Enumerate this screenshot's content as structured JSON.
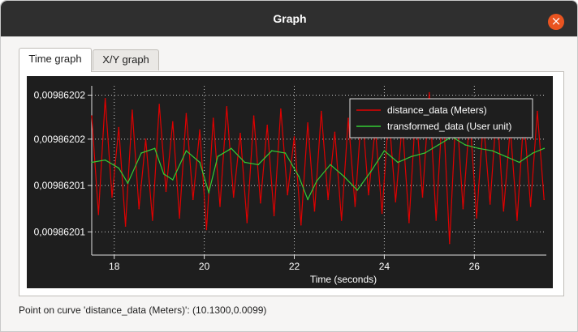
{
  "window": {
    "title": "Graph",
    "close_icon": "close-icon"
  },
  "tabs": [
    {
      "label": "Time graph",
      "active": true
    },
    {
      "label": "X/Y graph",
      "active": false
    }
  ],
  "colors": {
    "background": "#1e1e1e",
    "grid": "#c8c8c8",
    "axis": "#dddddd",
    "series1": "#e00000",
    "series2": "#33cc33"
  },
  "chart_data": {
    "type": "line",
    "title": "",
    "xlabel": "Time (seconds)",
    "ylabel": "",
    "xlim": [
      17.5,
      27.6
    ],
    "ylim": [
      0.009862007,
      0.0098620216
    ],
    "xticks": [
      18,
      20,
      22,
      24,
      26
    ],
    "xtick_labels": [
      "18",
      "20",
      "22",
      "24",
      "26"
    ],
    "yticks": [
      0.009862009,
      0.009862013,
      0.009862017,
      0.0098620208
    ],
    "ytick_labels": [
      "0,00986201",
      "0,00986201",
      "0,00986202",
      "0,00986202"
    ],
    "grid": true,
    "legend_position": "top-right",
    "series": [
      {
        "name": "distance_data (Meters)",
        "color": "#e00000",
        "x": [
          17.5,
          17.65,
          17.8,
          17.95,
          18.1,
          18.25,
          18.4,
          18.55,
          18.7,
          18.85,
          19.0,
          19.15,
          19.3,
          19.45,
          19.6,
          19.75,
          19.9,
          20.05,
          20.2,
          20.35,
          20.5,
          20.65,
          20.8,
          20.95,
          21.1,
          21.25,
          21.4,
          21.55,
          21.7,
          21.85,
          22.0,
          22.15,
          22.3,
          22.45,
          22.6,
          22.75,
          22.9,
          23.05,
          23.2,
          23.35,
          23.5,
          23.65,
          23.8,
          23.95,
          24.1,
          24.25,
          24.4,
          24.55,
          24.7,
          24.85,
          25.0,
          25.15,
          25.3,
          25.45,
          25.6,
          25.75,
          25.9,
          26.05,
          26.2,
          26.35,
          26.5,
          26.65,
          26.8,
          26.95,
          27.1,
          27.25,
          27.4,
          27.55
        ],
        "y": [
          0.009862019,
          0.0098620105,
          0.0098620205,
          0.009862012,
          0.009862018,
          0.0098620095,
          0.0098620195,
          0.009862011,
          0.009862017,
          0.00986201,
          0.00986202,
          0.0098620125,
          0.0098620185,
          0.0098620102,
          0.0098620192,
          0.0098620118,
          0.0098620178,
          0.0098620092,
          0.0098620188,
          0.0098620112,
          0.0098620198,
          0.009862012,
          0.0098620175,
          0.0098620098,
          0.009862019,
          0.0098620115,
          0.0098620182,
          0.0098620104,
          0.0098620196,
          0.0098620122,
          0.0098620172,
          0.0098620096,
          0.0098620184,
          0.0098620108,
          0.0098620194,
          0.0098620118,
          0.0098620176,
          0.00986201,
          0.0098620188,
          0.0098620112,
          0.0098620198,
          0.0098620122,
          0.009862018,
          0.0098620106,
          0.0098620192,
          0.0098620116,
          0.0098620184,
          0.0098620098,
          0.0098620196,
          0.009862012,
          0.009862021,
          0.00986201,
          0.0098620202,
          0.009862008,
          0.00986202,
          0.009862011,
          0.009862019,
          0.0098620102,
          0.0098620186,
          0.0098620114,
          0.0098620198,
          0.0098620108,
          0.009862018,
          0.00986201,
          0.009862019,
          0.0098620112,
          0.0098620194,
          0.0098620118
        ]
      },
      {
        "name": "transformed_data (User unit)",
        "color": "#33cc33",
        "x": [
          17.5,
          17.8,
          18.1,
          18.3,
          18.6,
          18.9,
          19.1,
          19.3,
          19.6,
          19.9,
          20.1,
          20.3,
          20.6,
          20.9,
          21.2,
          21.5,
          21.8,
          22.1,
          22.3,
          22.5,
          22.8,
          23.1,
          23.4,
          23.7,
          24.0,
          24.3,
          24.6,
          24.9,
          25.2,
          25.5,
          25.8,
          26.1,
          26.4,
          26.7,
          27.0,
          27.3,
          27.55
        ],
        "y": [
          0.009862015,
          0.0098620152,
          0.0098620145,
          0.0098620132,
          0.0098620158,
          0.0098620162,
          0.009862014,
          0.0098620135,
          0.009862016,
          0.009862015,
          0.0098620124,
          0.0098620155,
          0.0098620162,
          0.009862015,
          0.0098620148,
          0.009862016,
          0.0098620158,
          0.0098620138,
          0.0098620118,
          0.0098620134,
          0.0098620148,
          0.0098620138,
          0.0098620126,
          0.0098620142,
          0.009862016,
          0.009862015,
          0.0098620155,
          0.0098620158,
          0.0098620165,
          0.0098620172,
          0.0098620165,
          0.0098620162,
          0.009862016,
          0.0098620155,
          0.009862015,
          0.0098620158,
          0.0098620162
        ]
      }
    ]
  },
  "status": {
    "text": "Point on curve 'distance_data (Meters)': (10.1300,0.0099)"
  }
}
